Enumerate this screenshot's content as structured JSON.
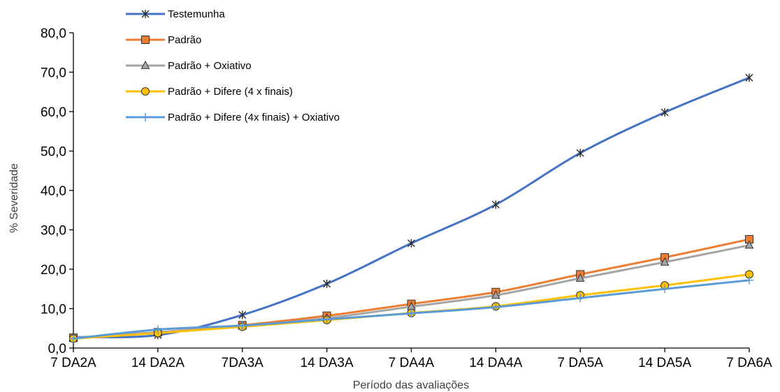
{
  "chart_data": {
    "type": "line",
    "title": "",
    "xlabel": "Período das avaliações",
    "ylabel": "% Severidade",
    "ylim": [
      0,
      80
    ],
    "yticks": [
      "0,0",
      "10,0",
      "20,0",
      "30,0",
      "40,0",
      "50,0",
      "60,0",
      "70,0",
      "80,0"
    ],
    "categories": [
      "7 DA2A",
      "14 DA2A",
      "7DA3A",
      "14 DA3A",
      "7 DA4A",
      "14 DA4A",
      "7 DA5A",
      "14 DA5A",
      "7 DA6A"
    ],
    "legend_position": "top-left",
    "grid": false,
    "series": [
      {
        "name": "Testemunha",
        "color": "#4472C4",
        "marker": "star",
        "values": [
          2.8,
          3.3,
          8.4,
          16.3,
          26.6,
          36.4,
          49.5,
          59.8,
          68.6
        ]
      },
      {
        "name": "Padrão",
        "color": "#ED7D31",
        "marker": "square",
        "values": [
          2.6,
          4.0,
          5.8,
          8.2,
          11.2,
          14.2,
          18.7,
          23.0,
          27.6
        ]
      },
      {
        "name": "Padrão + Oxiativo",
        "color": "#A5A5A5",
        "marker": "triangle",
        "values": [
          2.6,
          4.0,
          5.6,
          7.6,
          10.5,
          13.4,
          17.7,
          21.8,
          26.1
        ]
      },
      {
        "name": "Padrão + Difere (4 x finais)",
        "color": "#FFC000",
        "marker": "circle",
        "values": [
          2.4,
          3.8,
          5.4,
          7.1,
          8.9,
          10.6,
          13.4,
          15.9,
          18.7
        ]
      },
      {
        "name": "Padrão + Difere (4x finais) + Oxiativo",
        "color": "#5B9BD5",
        "marker": "plus",
        "values": [
          2.4,
          4.7,
          5.7,
          7.3,
          8.8,
          10.4,
          12.7,
          15.0,
          17.2
        ]
      }
    ]
  }
}
